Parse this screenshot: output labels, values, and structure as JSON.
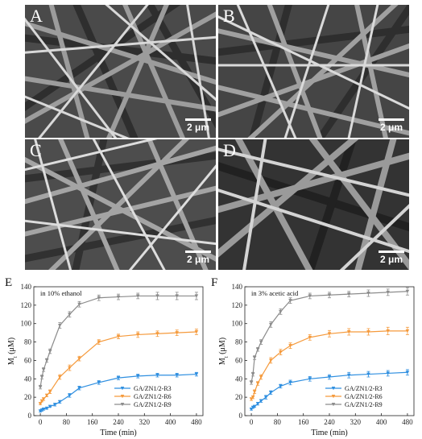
{
  "panels": {
    "A": {
      "letter": "A",
      "scale": "2 μm"
    },
    "B": {
      "letter": "B",
      "scale": "2 μm"
    },
    "C": {
      "letter": "C",
      "scale": "2 μm"
    },
    "D": {
      "letter": "D",
      "scale": "2 μm"
    }
  },
  "chart_labels": {
    "E": "E",
    "F": "F"
  },
  "chart_data": [
    {
      "type": "line",
      "annotation": "in 10% ethanol",
      "xlabel": "Time (min)",
      "ylabel": "Mt (μM)",
      "ylabel_main": "M",
      "ylabel_sub": "t",
      "ylabel_unit": " (μM)",
      "xlim": [
        -20,
        500
      ],
      "ylim": [
        0,
        140
      ],
      "xticks": [
        0,
        80,
        160,
        240,
        320,
        400,
        480
      ],
      "yticks": [
        0,
        20,
        40,
        60,
        80,
        100,
        120,
        140
      ],
      "legend_position": "bottom-right",
      "series": [
        {
          "name": "GA/ZN1/2-R3",
          "color": "#2f8fe0",
          "x": [
            0,
            5,
            10,
            20,
            30,
            45,
            60,
            90,
            120,
            180,
            240,
            300,
            360,
            420,
            480
          ],
          "y": [
            5,
            6,
            7,
            8,
            10,
            12,
            15,
            22,
            30,
            36,
            41,
            43,
            44,
            44,
            45
          ],
          "err": [
            1,
            1,
            1,
            1,
            1,
            1.5,
            1.5,
            2,
            2,
            2,
            2,
            2,
            2,
            2,
            2
          ]
        },
        {
          "name": "GA/ZN1/2-R6",
          "color": "#f59a3c",
          "x": [
            0,
            5,
            10,
            20,
            30,
            60,
            90,
            120,
            180,
            240,
            300,
            360,
            420,
            480
          ],
          "y": [
            13,
            16,
            18,
            22,
            26,
            42,
            52,
            62,
            80,
            86,
            88,
            89,
            90,
            91
          ],
          "err": [
            1,
            1,
            1.5,
            1.5,
            2,
            2.5,
            3,
            2.5,
            2.5,
            2.5,
            3,
            3,
            3,
            3
          ]
        },
        {
          "name": "GA/ZN1/2-R9",
          "color": "#8c8c8c",
          "x": [
            0,
            5,
            10,
            20,
            30,
            60,
            90,
            120,
            180,
            240,
            300,
            360,
            420,
            480
          ],
          "y": [
            31,
            42,
            50,
            60,
            70,
            98,
            110,
            121,
            128,
            129,
            130,
            130,
            130,
            130
          ],
          "err": [
            2,
            2,
            2,
            2,
            2.5,
            3,
            3,
            3,
            3,
            3,
            3,
            4,
            4,
            4
          ]
        }
      ]
    },
    {
      "type": "line",
      "annotation": "in 3% acetic acid",
      "xlabel": "Time (min)",
      "ylabel": "Mt (μM)",
      "ylabel_main": "M",
      "ylabel_sub": "t",
      "ylabel_unit": " (μM)",
      "xlim": [
        -20,
        500
      ],
      "ylim": [
        0,
        140
      ],
      "xticks": [
        0,
        80,
        160,
        240,
        320,
        400,
        480
      ],
      "yticks": [
        0,
        20,
        40,
        60,
        80,
        100,
        120,
        140
      ],
      "legend_position": "bottom-right",
      "series": [
        {
          "name": "GA/ZN1/2-R3",
          "color": "#2f8fe0",
          "x": [
            0,
            5,
            10,
            20,
            30,
            45,
            60,
            90,
            120,
            180,
            240,
            300,
            360,
            420,
            480
          ],
          "y": [
            7,
            9,
            10,
            13,
            16,
            20,
            25,
            32,
            36,
            40,
            42,
            44,
            45,
            46,
            47
          ],
          "err": [
            1,
            1,
            1,
            1.5,
            1.5,
            2,
            2,
            2,
            2.5,
            2.5,
            2.5,
            3,
            3,
            3,
            3
          ]
        },
        {
          "name": "GA/ZN1/2-R6",
          "color": "#f59a3c",
          "x": [
            0,
            5,
            10,
            20,
            30,
            60,
            90,
            120,
            180,
            240,
            300,
            360,
            420,
            480
          ],
          "y": [
            18,
            20,
            26,
            35,
            42,
            60,
            69,
            76,
            85,
            89,
            91,
            91,
            92,
            92
          ],
          "err": [
            1.5,
            1.5,
            2,
            2,
            2.5,
            3,
            3,
            3,
            3,
            3.5,
            3.5,
            3.5,
            4,
            4
          ]
        },
        {
          "name": "GA/ZN1/2-R9",
          "color": "#8c8c8c",
          "x": [
            0,
            5,
            10,
            20,
            30,
            60,
            90,
            120,
            180,
            240,
            300,
            360,
            420,
            480
          ],
          "y": [
            36,
            45,
            63,
            72,
            80,
            99,
            113,
            125,
            130,
            131,
            132,
            133,
            134,
            135
          ],
          "err": [
            2,
            2,
            2,
            2,
            2.5,
            3,
            3,
            3,
            3,
            3,
            3,
            3.5,
            3.5,
            4
          ]
        }
      ]
    }
  ]
}
